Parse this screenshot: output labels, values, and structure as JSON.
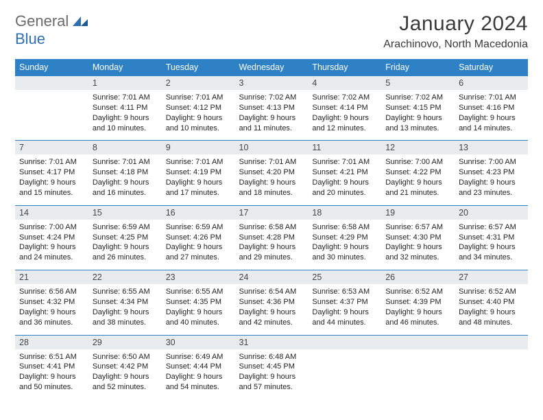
{
  "logo": {
    "word1": "General",
    "word2": "Blue"
  },
  "title": "January 2024",
  "location": "Arachinovo, North Macedonia",
  "weekdays": [
    "Sunday",
    "Monday",
    "Tuesday",
    "Wednesday",
    "Thursday",
    "Friday",
    "Saturday"
  ],
  "colors": {
    "header_bg": "#2f81c5",
    "header_text": "#ffffff",
    "daynum_bg": "#e9ecef",
    "row_divider": "#2f81c5",
    "text": "#222222",
    "logo_gray": "#6a6a6a",
    "logo_blue": "#2f6fb0",
    "background": "#ffffff"
  },
  "typography": {
    "title_fontsize": 30,
    "location_fontsize": 16,
    "weekday_fontsize": 12.5,
    "daynum_fontsize": 12.5,
    "detail_fontsize": 11
  },
  "layout": {
    "columns": 7,
    "rows": 5,
    "first_weekday_offset": 1
  },
  "days": [
    {
      "n": "1",
      "sunrise": "7:01 AM",
      "sunset": "4:11 PM",
      "daylight": "9 hours and 10 minutes."
    },
    {
      "n": "2",
      "sunrise": "7:01 AM",
      "sunset": "4:12 PM",
      "daylight": "9 hours and 10 minutes."
    },
    {
      "n": "3",
      "sunrise": "7:02 AM",
      "sunset": "4:13 PM",
      "daylight": "9 hours and 11 minutes."
    },
    {
      "n": "4",
      "sunrise": "7:02 AM",
      "sunset": "4:14 PM",
      "daylight": "9 hours and 12 minutes."
    },
    {
      "n": "5",
      "sunrise": "7:02 AM",
      "sunset": "4:15 PM",
      "daylight": "9 hours and 13 minutes."
    },
    {
      "n": "6",
      "sunrise": "7:01 AM",
      "sunset": "4:16 PM",
      "daylight": "9 hours and 14 minutes."
    },
    {
      "n": "7",
      "sunrise": "7:01 AM",
      "sunset": "4:17 PM",
      "daylight": "9 hours and 15 minutes."
    },
    {
      "n": "8",
      "sunrise": "7:01 AM",
      "sunset": "4:18 PM",
      "daylight": "9 hours and 16 minutes."
    },
    {
      "n": "9",
      "sunrise": "7:01 AM",
      "sunset": "4:19 PM",
      "daylight": "9 hours and 17 minutes."
    },
    {
      "n": "10",
      "sunrise": "7:01 AM",
      "sunset": "4:20 PM",
      "daylight": "9 hours and 18 minutes."
    },
    {
      "n": "11",
      "sunrise": "7:01 AM",
      "sunset": "4:21 PM",
      "daylight": "9 hours and 20 minutes."
    },
    {
      "n": "12",
      "sunrise": "7:00 AM",
      "sunset": "4:22 PM",
      "daylight": "9 hours and 21 minutes."
    },
    {
      "n": "13",
      "sunrise": "7:00 AM",
      "sunset": "4:23 PM",
      "daylight": "9 hours and 23 minutes."
    },
    {
      "n": "14",
      "sunrise": "7:00 AM",
      "sunset": "4:24 PM",
      "daylight": "9 hours and 24 minutes."
    },
    {
      "n": "15",
      "sunrise": "6:59 AM",
      "sunset": "4:25 PM",
      "daylight": "9 hours and 26 minutes."
    },
    {
      "n": "16",
      "sunrise": "6:59 AM",
      "sunset": "4:26 PM",
      "daylight": "9 hours and 27 minutes."
    },
    {
      "n": "17",
      "sunrise": "6:58 AM",
      "sunset": "4:28 PM",
      "daylight": "9 hours and 29 minutes."
    },
    {
      "n": "18",
      "sunrise": "6:58 AM",
      "sunset": "4:29 PM",
      "daylight": "9 hours and 30 minutes."
    },
    {
      "n": "19",
      "sunrise": "6:57 AM",
      "sunset": "4:30 PM",
      "daylight": "9 hours and 32 minutes."
    },
    {
      "n": "20",
      "sunrise": "6:57 AM",
      "sunset": "4:31 PM",
      "daylight": "9 hours and 34 minutes."
    },
    {
      "n": "21",
      "sunrise": "6:56 AM",
      "sunset": "4:32 PM",
      "daylight": "9 hours and 36 minutes."
    },
    {
      "n": "22",
      "sunrise": "6:55 AM",
      "sunset": "4:34 PM",
      "daylight": "9 hours and 38 minutes."
    },
    {
      "n": "23",
      "sunrise": "6:55 AM",
      "sunset": "4:35 PM",
      "daylight": "9 hours and 40 minutes."
    },
    {
      "n": "24",
      "sunrise": "6:54 AM",
      "sunset": "4:36 PM",
      "daylight": "9 hours and 42 minutes."
    },
    {
      "n": "25",
      "sunrise": "6:53 AM",
      "sunset": "4:37 PM",
      "daylight": "9 hours and 44 minutes."
    },
    {
      "n": "26",
      "sunrise": "6:52 AM",
      "sunset": "4:39 PM",
      "daylight": "9 hours and 46 minutes."
    },
    {
      "n": "27",
      "sunrise": "6:52 AM",
      "sunset": "4:40 PM",
      "daylight": "9 hours and 48 minutes."
    },
    {
      "n": "28",
      "sunrise": "6:51 AM",
      "sunset": "4:41 PM",
      "daylight": "9 hours and 50 minutes."
    },
    {
      "n": "29",
      "sunrise": "6:50 AM",
      "sunset": "4:42 PM",
      "daylight": "9 hours and 52 minutes."
    },
    {
      "n": "30",
      "sunrise": "6:49 AM",
      "sunset": "4:44 PM",
      "daylight": "9 hours and 54 minutes."
    },
    {
      "n": "31",
      "sunrise": "6:48 AM",
      "sunset": "4:45 PM",
      "daylight": "9 hours and 57 minutes."
    }
  ],
  "labels": {
    "sunrise_prefix": "Sunrise: ",
    "sunset_prefix": "Sunset: ",
    "daylight_prefix": "Daylight: "
  }
}
